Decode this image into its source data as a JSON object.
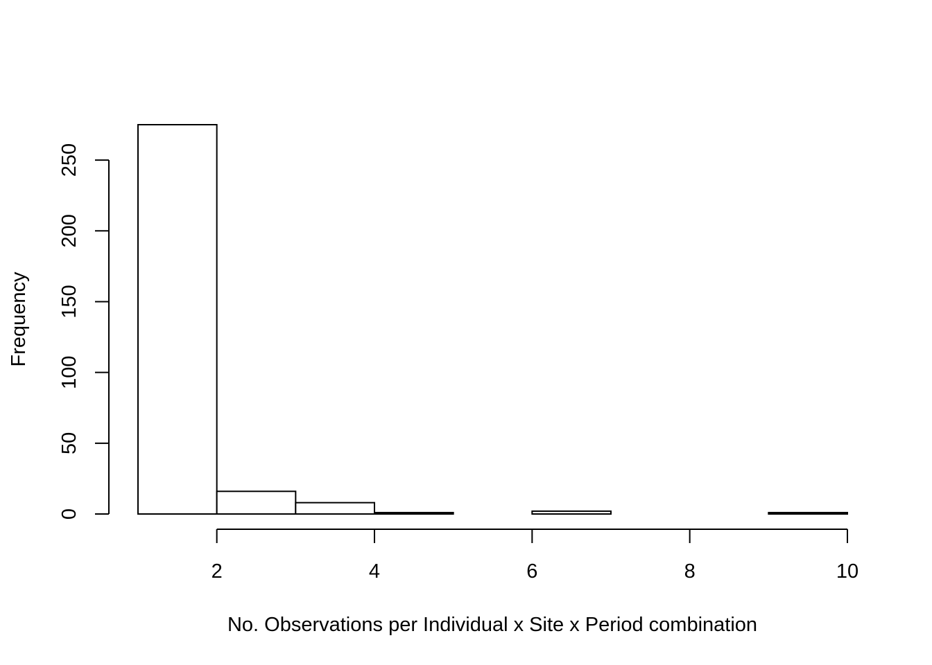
{
  "chart_data": {
    "type": "bar",
    "title": "",
    "xlabel": "No. Observations per Individual x Site x Period combination",
    "ylabel": "Frequency",
    "bins": [
      {
        "from": 1,
        "to": 2,
        "count": 275
      },
      {
        "from": 2,
        "to": 3,
        "count": 16
      },
      {
        "from": 3,
        "to": 4,
        "count": 8
      },
      {
        "from": 4,
        "to": 5,
        "count": 1
      },
      {
        "from": 5,
        "to": 6,
        "count": 0
      },
      {
        "from": 6,
        "to": 7,
        "count": 2
      },
      {
        "from": 7,
        "to": 8,
        "count": 0
      },
      {
        "from": 8,
        "to": 9,
        "count": 0
      },
      {
        "from": 9,
        "to": 10,
        "count": 1
      }
    ],
    "xlim": [
      1,
      10
    ],
    "ylim": [
      0,
      275
    ],
    "xticks": [
      2,
      4,
      6,
      8,
      10
    ],
    "yticks": [
      0,
      50,
      100,
      150,
      200,
      250
    ],
    "grid": false,
    "legend": "none"
  }
}
